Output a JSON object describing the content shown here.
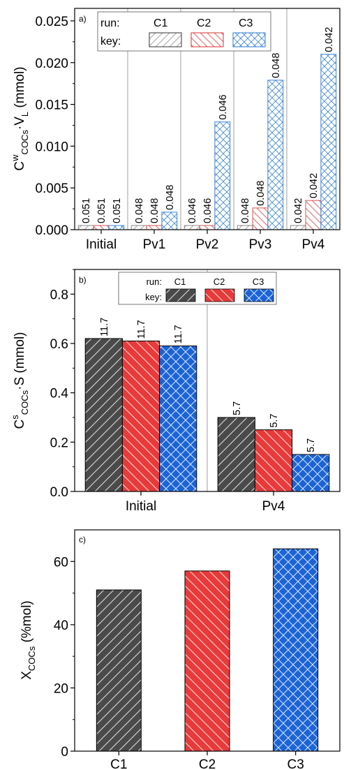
{
  "colors": {
    "C1": "#4a4a4a",
    "C2": "#e83a3a",
    "C3": "#1b63d6",
    "hollow_C1": "#8a8a8a",
    "hollow_C2": "#e05050",
    "hollow_C3": "#3a84d8"
  },
  "chart_data": [
    {
      "type": "bar",
      "panel": "a)",
      "categories": [
        "Initial",
        "Pv1",
        "Pv2",
        "Pv3",
        "Pv4"
      ],
      "ylabel_main": "C",
      "ylabel_sup": "w",
      "ylabel_sub": "COCs",
      "ylabel_mid": "·V",
      "ylabel_sub2": "L",
      "ylabel_tail": " (mmol)",
      "ylim": [
        0,
        0.0265
      ],
      "yticks": [
        "0.000",
        "0.005",
        "0.010",
        "0.015",
        "0.020",
        "0.025"
      ],
      "legend": {
        "run_label": "run:",
        "key_label": "key:",
        "names": [
          "C1",
          "C2",
          "C3"
        ],
        "placement": "top-left"
      },
      "series": [
        {
          "name": "C1",
          "values": [
            0.0005,
            0.0005,
            0.0005,
            0.0005,
            0.0005
          ],
          "labels": [
            "0.051",
            "0.048",
            "0.046",
            "0.048",
            "0.042"
          ]
        },
        {
          "name": "C2",
          "values": [
            0.0005,
            0.0005,
            0.0005,
            0.0026,
            0.0035
          ],
          "labels": [
            "0.051",
            "0.048",
            "0.046",
            "0.048",
            "0.042"
          ]
        },
        {
          "name": "C3",
          "values": [
            0.0005,
            0.0021,
            0.0129,
            0.0179,
            0.021
          ],
          "labels": [
            "0.051",
            "0.048",
            "0.046",
            "0.048",
            "0.042"
          ]
        }
      ]
    },
    {
      "type": "bar",
      "panel": "b)",
      "categories": [
        "Initial",
        "Pv4"
      ],
      "ylabel_main": "C",
      "ylabel_sup": "s",
      "ylabel_sub": "COCs",
      "ylabel_tail": "·S (mmol)",
      "ylim": [
        0,
        0.9
      ],
      "yticks": [
        "0.0",
        "0.2",
        "0.4",
        "0.6",
        "0.8"
      ],
      "legend": {
        "run_label": "run:",
        "key_label": "key:",
        "names": [
          "C1",
          "C2",
          "C3"
        ],
        "placement": "top"
      },
      "series": [
        {
          "name": "C1",
          "values": [
            0.62,
            0.3
          ],
          "labels": [
            "11.7",
            "5.7"
          ]
        },
        {
          "name": "C2",
          "values": [
            0.61,
            0.25
          ],
          "labels": [
            "11.7",
            "5.7"
          ]
        },
        {
          "name": "C3",
          "values": [
            0.59,
            0.15
          ],
          "labels": [
            "11.7",
            "5.7"
          ]
        }
      ]
    },
    {
      "type": "bar",
      "panel": "c)",
      "categories": [
        "C1",
        "C2",
        "C3"
      ],
      "ylabel_main": "X",
      "ylabel_sub": "COCs",
      "ylabel_tail": " (%mol)",
      "ylim": [
        0,
        70
      ],
      "yticks": [
        "0",
        "20",
        "40",
        "60"
      ],
      "values": [
        51,
        57,
        64
      ]
    }
  ]
}
